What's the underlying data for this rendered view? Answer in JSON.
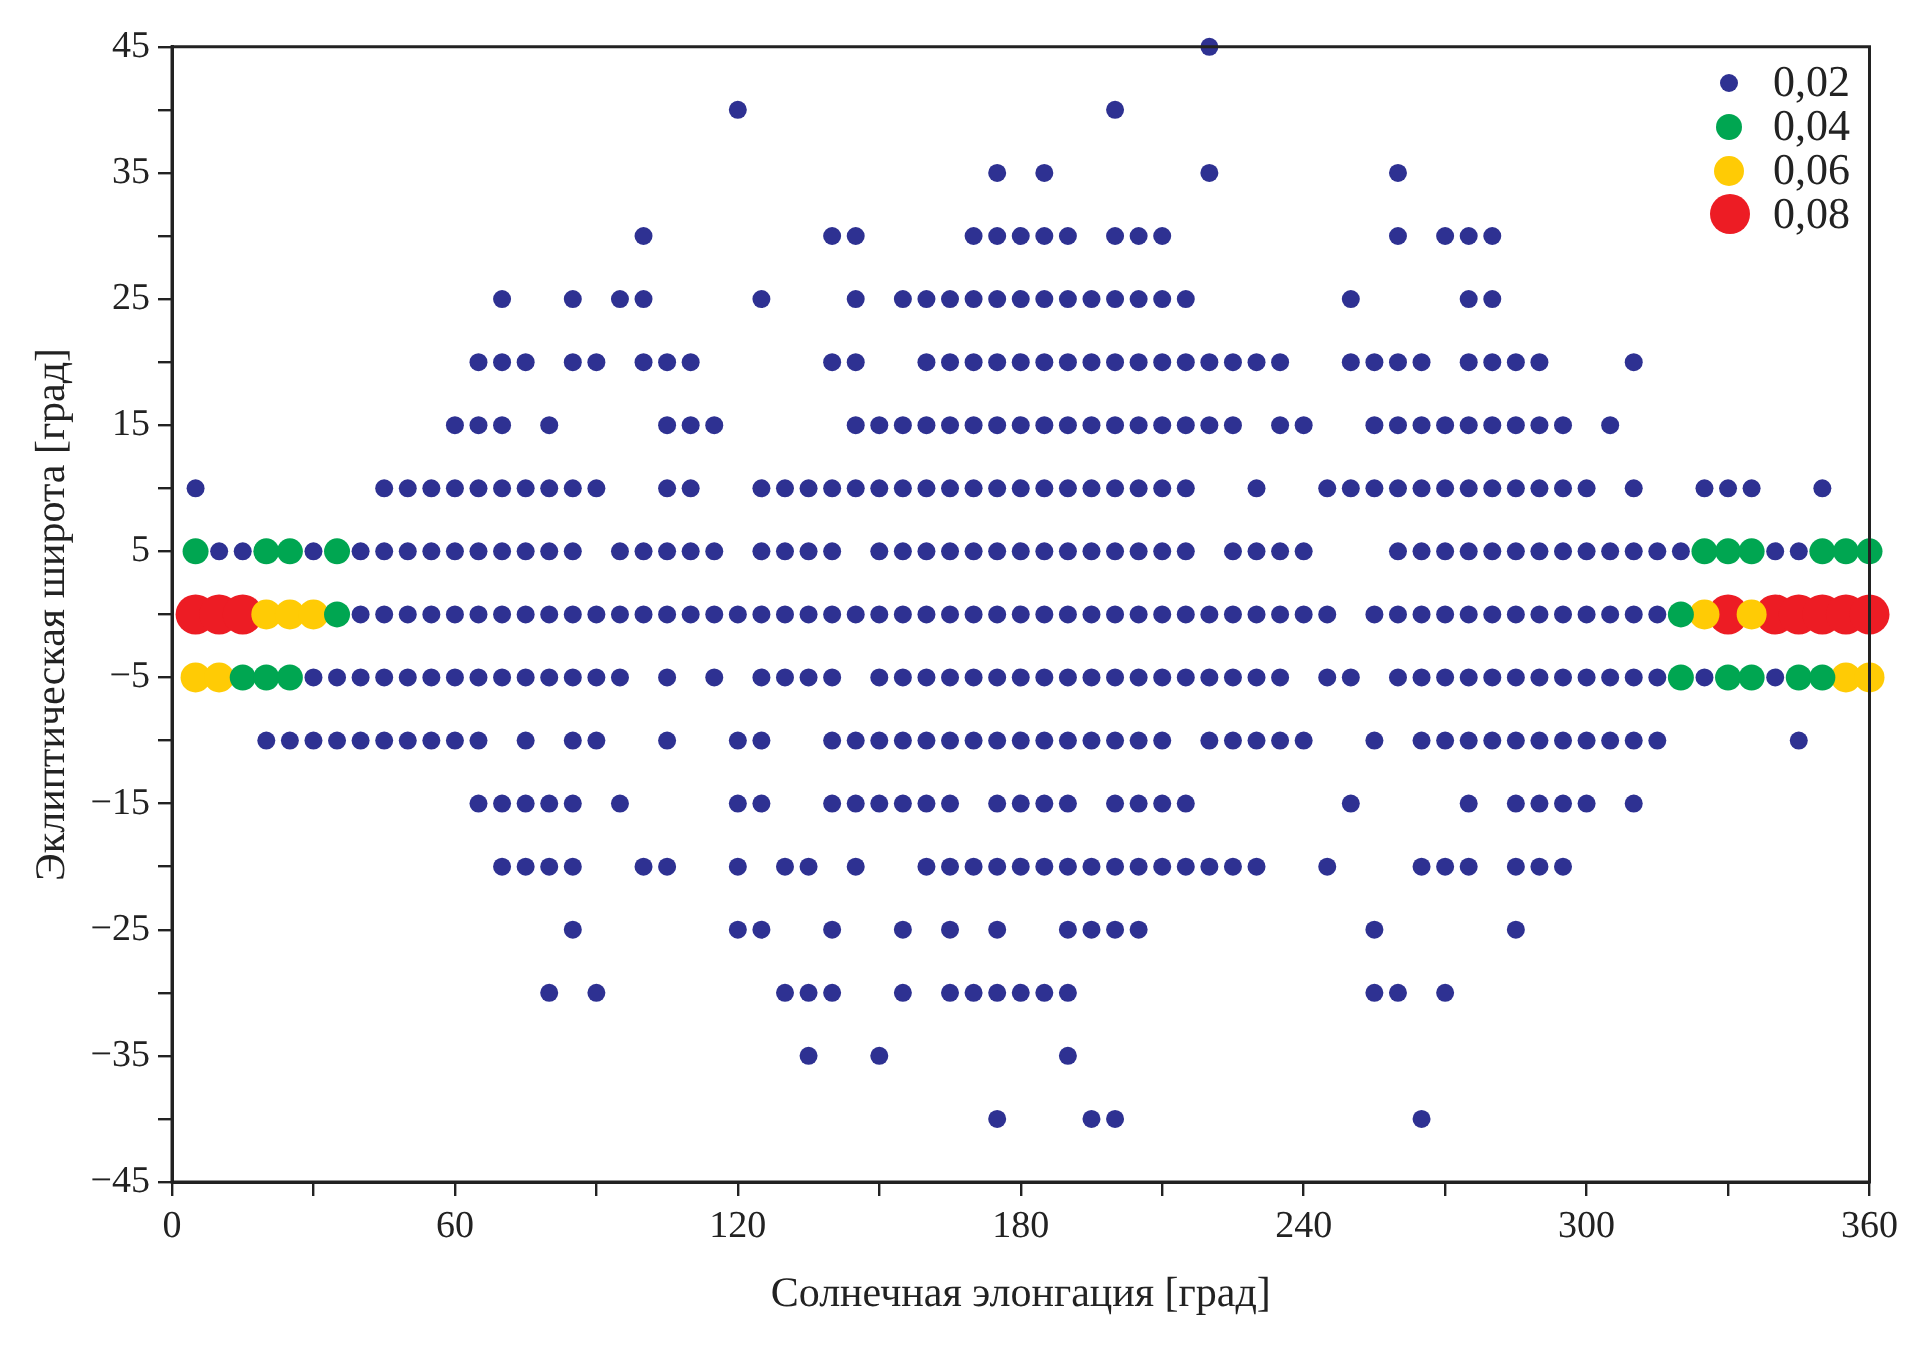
{
  "chart_data": {
    "type": "scatter",
    "xlabel": "Солнечная элонгация [град]",
    "ylabel": "Эклиптическая широта [град]",
    "xlim": [
      0,
      360
    ],
    "ylim": [
      -45,
      45
    ],
    "xticks": [
      0,
      {
        "value": 30,
        "label": null
      },
      60,
      {
        "value": 90,
        "label": null
      },
      120,
      {
        "value": 150,
        "label": null
      },
      180,
      {
        "value": 210,
        "label": null
      },
      240,
      {
        "value": 270,
        "label": null
      },
      300,
      {
        "value": 330,
        "label": null
      },
      360
    ],
    "yticks": [
      -45,
      {
        "value": -40,
        "label": null
      },
      -35,
      {
        "value": -30,
        "label": null
      },
      -25,
      {
        "value": -20,
        "label": null
      },
      -15,
      {
        "value": -10,
        "label": null
      },
      -5,
      {
        "value": 0,
        "label": null
      },
      5,
      {
        "value": 10,
        "label": null
      },
      15,
      {
        "value": 20,
        "label": null
      },
      25,
      {
        "value": 30,
        "label": null
      },
      35,
      {
        "value": 40,
        "label": null
      },
      45
    ],
    "grid": false,
    "legend": "top right",
    "marker": "circle",
    "series": [
      {
        "name": "0,02",
        "color": "#2e3192",
        "x": [
          220,
          120,
          200,
          175,
          185,
          220,
          260,
          100,
          140,
          145,
          170,
          175,
          180,
          185,
          190,
          200,
          205,
          210,
          260,
          270,
          275,
          280,
          70,
          85,
          95,
          100,
          125,
          145,
          155,
          160,
          165,
          170,
          175,
          180,
          185,
          190,
          195,
          200,
          205,
          210,
          215,
          250,
          275,
          280,
          65,
          70,
          75,
          85,
          90,
          100,
          105,
          110,
          140,
          145,
          160,
          165,
          170,
          175,
          180,
          185,
          190,
          195,
          200,
          205,
          210,
          215,
          220,
          225,
          230,
          235,
          250,
          255,
          260,
          265,
          275,
          280,
          285,
          290,
          310,
          60,
          65,
          70,
          80,
          105,
          110,
          115,
          145,
          150,
          155,
          160,
          165,
          170,
          175,
          180,
          185,
          190,
          195,
          200,
          205,
          210,
          215,
          220,
          225,
          235,
          240,
          255,
          260,
          265,
          270,
          275,
          280,
          285,
          290,
          295,
          305,
          5,
          45,
          50,
          55,
          60,
          65,
          70,
          75,
          80,
          85,
          90,
          105,
          110,
          125,
          130,
          135,
          140,
          145,
          150,
          155,
          160,
          165,
          170,
          175,
          180,
          185,
          190,
          195,
          200,
          205,
          210,
          215,
          230,
          245,
          250,
          255,
          260,
          265,
          270,
          275,
          280,
          285,
          290,
          295,
          300,
          310,
          325,
          330,
          335,
          350,
          10,
          15,
          30,
          40,
          45,
          50,
          55,
          60,
          65,
          70,
          75,
          80,
          85,
          95,
          100,
          105,
          110,
          115,
          125,
          130,
          135,
          140,
          150,
          155,
          160,
          165,
          170,
          175,
          180,
          185,
          190,
          195,
          200,
          205,
          210,
          215,
          225,
          230,
          235,
          240,
          260,
          265,
          270,
          275,
          280,
          285,
          290,
          295,
          300,
          305,
          310,
          315,
          320,
          340,
          345,
          40,
          45,
          50,
          55,
          60,
          65,
          70,
          75,
          80,
          85,
          90,
          95,
          100,
          105,
          110,
          115,
          120,
          125,
          130,
          135,
          140,
          145,
          150,
          155,
          160,
          165,
          170,
          175,
          180,
          185,
          190,
          195,
          200,
          205,
          210,
          215,
          220,
          225,
          230,
          235,
          240,
          245,
          255,
          260,
          265,
          270,
          275,
          280,
          285,
          290,
          295,
          300,
          305,
          310,
          315,
          30,
          35,
          40,
          45,
          50,
          55,
          60,
          65,
          70,
          75,
          80,
          85,
          90,
          95,
          105,
          115,
          125,
          130,
          135,
          140,
          150,
          155,
          160,
          165,
          170,
          175,
          180,
          185,
          190,
          195,
          200,
          205,
          210,
          215,
          220,
          225,
          230,
          235,
          245,
          250,
          260,
          265,
          270,
          275,
          280,
          285,
          290,
          295,
          300,
          305,
          310,
          315,
          325,
          340,
          20,
          25,
          30,
          35,
          40,
          45,
          50,
          55,
          60,
          65,
          75,
          85,
          90,
          105,
          120,
          125,
          140,
          145,
          150,
          155,
          160,
          165,
          170,
          175,
          180,
          185,
          190,
          195,
          200,
          205,
          210,
          220,
          225,
          230,
          235,
          240,
          255,
          265,
          270,
          275,
          280,
          285,
          290,
          295,
          300,
          305,
          310,
          315,
          345,
          65,
          70,
          75,
          80,
          85,
          95,
          120,
          125,
          140,
          145,
          150,
          155,
          160,
          165,
          175,
          180,
          185,
          190,
          200,
          205,
          210,
          215,
          250,
          275,
          285,
          290,
          295,
          300,
          310,
          70,
          75,
          80,
          85,
          100,
          105,
          120,
          130,
          135,
          145,
          160,
          165,
          170,
          175,
          180,
          185,
          190,
          195,
          200,
          205,
          210,
          215,
          220,
          225,
          230,
          245,
          265,
          270,
          275,
          285,
          290,
          295,
          85,
          120,
          125,
          140,
          155,
          165,
          175,
          190,
          195,
          200,
          205,
          255,
          285,
          80,
          90,
          130,
          135,
          140,
          155,
          165,
          170,
          175,
          180,
          185,
          190,
          255,
          260,
          270,
          135,
          150,
          190,
          175,
          195,
          200,
          265
        ],
        "values": [
          45,
          40,
          40,
          35,
          35,
          35,
          35,
          30,
          30,
          30,
          30,
          30,
          30,
          30,
          30,
          30,
          30,
          30,
          30,
          30,
          30,
          30,
          25,
          25,
          25,
          25,
          25,
          25,
          25,
          25,
          25,
          25,
          25,
          25,
          25,
          25,
          25,
          25,
          25,
          25,
          25,
          25,
          25,
          25,
          20,
          20,
          20,
          20,
          20,
          20,
          20,
          20,
          20,
          20,
          20,
          20,
          20,
          20,
          20,
          20,
          20,
          20,
          20,
          20,
          20,
          20,
          20,
          20,
          20,
          20,
          20,
          20,
          20,
          20,
          20,
          20,
          20,
          20,
          20,
          15,
          15,
          15,
          15,
          15,
          15,
          15,
          15,
          15,
          15,
          15,
          15,
          15,
          15,
          15,
          15,
          15,
          15,
          15,
          15,
          15,
          15,
          15,
          15,
          15,
          15,
          15,
          15,
          15,
          15,
          15,
          15,
          15,
          15,
          15,
          15,
          10,
          10,
          10,
          10,
          10,
          10,
          10,
          10,
          10,
          10,
          10,
          10,
          10,
          10,
          10,
          10,
          10,
          10,
          10,
          10,
          10,
          10,
          10,
          10,
          10,
          10,
          10,
          10,
          10,
          10,
          10,
          10,
          10,
          10,
          10,
          10,
          10,
          10,
          10,
          10,
          10,
          10,
          10,
          10,
          10,
          10,
          10,
          10,
          10,
          10,
          5,
          5,
          5,
          5,
          5,
          5,
          5,
          5,
          5,
          5,
          5,
          5,
          5,
          5,
          5,
          5,
          5,
          5,
          5,
          5,
          5,
          5,
          5,
          5,
          5,
          5,
          5,
          5,
          5,
          5,
          5,
          5,
          5,
          5,
          5,
          5,
          5,
          5,
          5,
          5,
          5,
          5,
          5,
          5,
          5,
          5,
          5,
          5,
          5,
          5,
          5,
          5,
          5,
          5,
          5,
          0,
          0,
          0,
          0,
          0,
          0,
          0,
          0,
          0,
          0,
          0,
          0,
          0,
          0,
          0,
          0,
          0,
          0,
          0,
          0,
          0,
          0,
          0,
          0,
          0,
          0,
          0,
          0,
          0,
          0,
          0,
          0,
          0,
          0,
          0,
          0,
          0,
          0,
          0,
          0,
          0,
          0,
          0,
          0,
          0,
          0,
          0,
          0,
          0,
          0,
          0,
          0,
          0,
          0,
          0,
          -5,
          -5,
          -5,
          -5,
          -5,
          -5,
          -5,
          -5,
          -5,
          -5,
          -5,
          -5,
          -5,
          -5,
          -5,
          -5,
          -5,
          -5,
          -5,
          -5,
          -5,
          -5,
          -5,
          -5,
          -5,
          -5,
          -5,
          -5,
          -5,
          -5,
          -5,
          -5,
          -5,
          -5,
          -5,
          -5,
          -5,
          -5,
          -5,
          -5,
          -5,
          -5,
          -5,
          -5,
          -5,
          -5,
          -5,
          -5,
          -5,
          -5,
          -5,
          -5,
          -5,
          -5,
          -10,
          -10,
          -10,
          -10,
          -10,
          -10,
          -10,
          -10,
          -10,
          -10,
          -10,
          -10,
          -10,
          -10,
          -10,
          -10,
          -10,
          -10,
          -10,
          -10,
          -10,
          -10,
          -10,
          -10,
          -10,
          -10,
          -10,
          -10,
          -10,
          -10,
          -10,
          -10,
          -10,
          -10,
          -10,
          -10,
          -10,
          -10,
          -10,
          -10,
          -10,
          -10,
          -10,
          -10,
          -10,
          -10,
          -10,
          -10,
          -10,
          -15,
          -15,
          -15,
          -15,
          -15,
          -15,
          -15,
          -15,
          -15,
          -15,
          -15,
          -15,
          -15,
          -15,
          -15,
          -15,
          -15,
          -15,
          -15,
          -15,
          -15,
          -15,
          -15,
          -15,
          -15,
          -15,
          -15,
          -15,
          -15,
          -20,
          -20,
          -20,
          -20,
          -20,
          -20,
          -20,
          -20,
          -20,
          -20,
          -20,
          -20,
          -20,
          -20,
          -20,
          -20,
          -20,
          -20,
          -20,
          -20,
          -20,
          -20,
          -20,
          -20,
          -20,
          -20,
          -20,
          -20,
          -20,
          -20,
          -20,
          -20,
          -25,
          -25,
          -25,
          -25,
          -25,
          -25,
          -25,
          -25,
          -25,
          -25,
          -25,
          -25,
          -25,
          -30,
          -30,
          -30,
          -30,
          -30,
          -30,
          -30,
          -30,
          -30,
          -30,
          -30,
          -30,
          -30,
          -30,
          -30,
          -35,
          -35,
          -35,
          -40,
          -40,
          -40,
          -40
        ]
      },
      {
        "name": "0,04",
        "color": "#00a651",
        "x": [
          5,
          20,
          25,
          35,
          325,
          330,
          335,
          350,
          355,
          360,
          35,
          320,
          15,
          20,
          25,
          320,
          330,
          335,
          345,
          350
        ],
        "values": [
          5,
          5,
          5,
          5,
          5,
          5,
          5,
          5,
          5,
          5,
          0,
          0,
          -5,
          -5,
          -5,
          -5,
          -5,
          -5,
          -5,
          -5
        ]
      },
      {
        "name": "0,06",
        "color": "#ffcb05",
        "x": [
          20,
          25,
          30,
          325,
          335,
          5,
          10,
          355,
          360
        ],
        "values": [
          0,
          0,
          0,
          0,
          0,
          -5,
          -5,
          -5,
          -5
        ]
      },
      {
        "name": "0,08",
        "color": "#ed1c24",
        "x": [
          5,
          10,
          15,
          330,
          340,
          345,
          350,
          355,
          360
        ],
        "values": [
          0,
          0,
          0,
          0,
          0,
          0,
          0,
          0,
          0
        ]
      }
    ]
  }
}
